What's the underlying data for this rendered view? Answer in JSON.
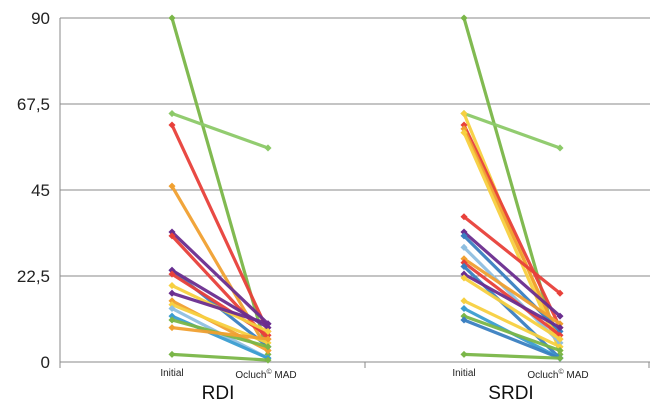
{
  "chart_data": {
    "type": "line",
    "groups": [
      {
        "label": "RDI",
        "x_labels": [
          "Initial",
          "Ocluch",
          "©",
          " MAD"
        ]
      },
      {
        "label": "SRDI",
        "x_labels": [
          "Initial",
          "Ocluch",
          "©",
          " MAD"
        ]
      }
    ],
    "y_ticks": [
      "0",
      "22,5",
      "45",
      "67,5",
      "90"
    ],
    "ylim": [
      0,
      90
    ],
    "grid": true,
    "rdi_pairs": [
      {
        "color": "#7ab648",
        "values": [
          90,
          2
        ]
      },
      {
        "color": "#8cc968",
        "values": [
          65,
          56
        ]
      },
      {
        "color": "#e8403a",
        "values": [
          62,
          8
        ]
      },
      {
        "color": "#f0a030",
        "values": [
          46,
          3
        ]
      },
      {
        "color": "#6a2d8f",
        "values": [
          34,
          10
        ]
      },
      {
        "color": "#e8403a",
        "values": [
          33,
          6
        ]
      },
      {
        "color": "#3a7fc1",
        "values": [
          24,
          4
        ]
      },
      {
        "color": "#6a2d8f",
        "values": [
          24,
          9
        ]
      },
      {
        "color": "#e8403a",
        "values": [
          23,
          7
        ]
      },
      {
        "color": "#f7d040",
        "values": [
          20,
          8
        ]
      },
      {
        "color": "#6a2d8f",
        "values": [
          18,
          10
        ]
      },
      {
        "color": "#f0a030",
        "values": [
          16,
          3
        ]
      },
      {
        "color": "#f7d040",
        "values": [
          15,
          5
        ]
      },
      {
        "color": "#8fbfe0",
        "values": [
          14,
          1
        ]
      },
      {
        "color": "#3a9dd1",
        "values": [
          12,
          1
        ]
      },
      {
        "color": "#7ab648",
        "values": [
          11,
          4
        ]
      },
      {
        "color": "#f0a030",
        "values": [
          9,
          6
        ]
      },
      {
        "color": "#7ab648",
        "values": [
          2,
          0.5
        ]
      }
    ],
    "srdi_pairs": [
      {
        "color": "#7ab648",
        "values": [
          90,
          2
        ]
      },
      {
        "color": "#8cc968",
        "values": [
          65,
          56
        ]
      },
      {
        "color": "#f7d040",
        "values": [
          65,
          4
        ]
      },
      {
        "color": "#e8403a",
        "values": [
          62,
          9
        ]
      },
      {
        "color": "#f0a030",
        "values": [
          61,
          6
        ]
      },
      {
        "color": "#f7d040",
        "values": [
          60,
          3
        ]
      },
      {
        "color": "#e8403a",
        "values": [
          38,
          18
        ]
      },
      {
        "color": "#6a2d8f",
        "values": [
          34,
          12
        ]
      },
      {
        "color": "#3a7fc1",
        "values": [
          33,
          8
        ]
      },
      {
        "color": "#8fbfe0",
        "values": [
          30,
          5
        ]
      },
      {
        "color": "#f0a030",
        "values": [
          27,
          10
        ]
      },
      {
        "color": "#e8403a",
        "values": [
          26,
          7
        ]
      },
      {
        "color": "#3a7fc1",
        "values": [
          25,
          1
        ]
      },
      {
        "color": "#6a2d8f",
        "values": [
          23,
          9
        ]
      },
      {
        "color": "#f7d040",
        "values": [
          22,
          6
        ]
      },
      {
        "color": "#f7d040",
        "values": [
          16,
          4
        ]
      },
      {
        "color": "#3a9dd1",
        "values": [
          14,
          1
        ]
      },
      {
        "color": "#7ab648",
        "values": [
          12,
          3
        ]
      },
      {
        "color": "#3a7fc1",
        "values": [
          11,
          1
        ]
      },
      {
        "color": "#7ab648",
        "values": [
          2,
          1
        ]
      }
    ]
  }
}
